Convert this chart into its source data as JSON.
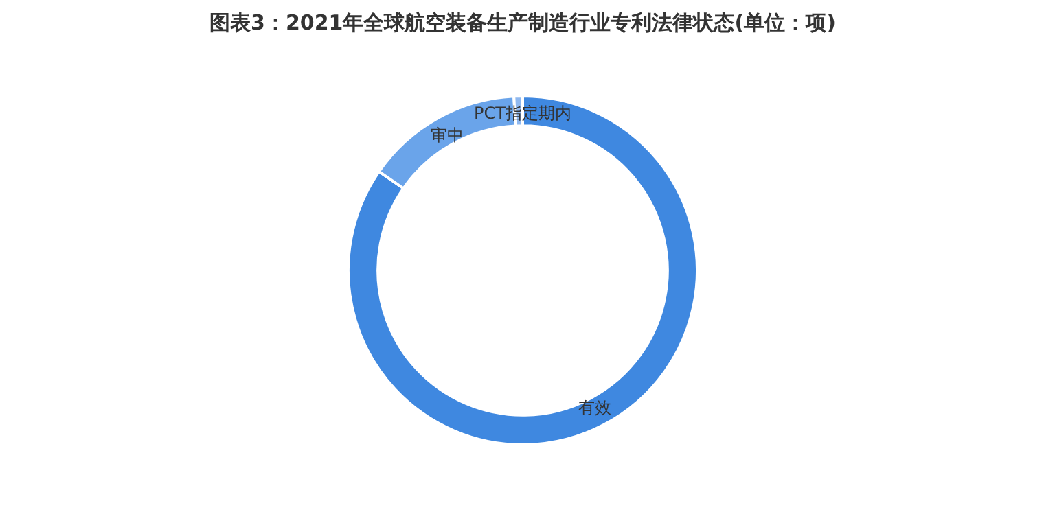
{
  "chart_data": {
    "type": "donut",
    "title": "图表3：2021年全球航空装备生产制造行业专利法律状态(单位：项)",
    "categories": [
      "有效",
      "审中",
      "PCT指定期内"
    ],
    "values": [
      84.6,
      14.6,
      0.8
    ],
    "colors": [
      "#3f88e0",
      "#6aa4ea",
      "#8fb8ef"
    ],
    "legend": false
  }
}
